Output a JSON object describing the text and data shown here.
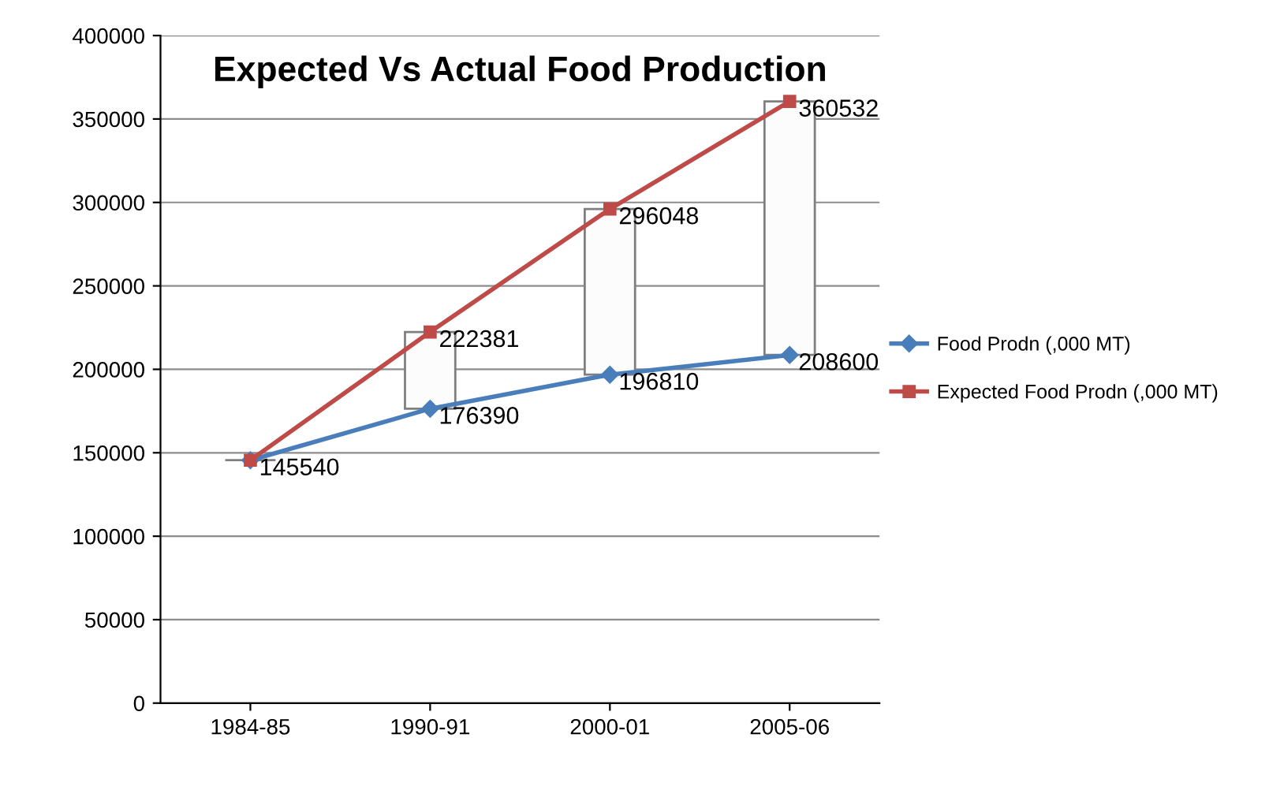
{
  "chart_data": {
    "type": "line",
    "title": "Expected Vs Actual Food Production",
    "categories": [
      "1984-85",
      "1990-91",
      "2000-01",
      "2005-06"
    ],
    "series": [
      {
        "type": "bar",
        "color": "#7f7f7f",
        "base": [
          145540,
          176390,
          196810,
          208600
        ],
        "values": [
          0,
          45991,
          99238,
          151932
        ]
      },
      {
        "name": "Food Prodn (,000 MT)",
        "color": "#4a7ebb",
        "marker": "diamond",
        "values": [
          145540,
          176390,
          196810,
          208600
        ],
        "value_labels": [
          "145540",
          "176390",
          "196810",
          "208600"
        ]
      },
      {
        "name": "Expected Food Prodn (,000 MT)",
        "color": "#be4b48",
        "marker": "square",
        "values": [
          145540,
          222381,
          296048,
          360532
        ],
        "value_labels": [
          null,
          "222381",
          "296048",
          "360532"
        ]
      }
    ],
    "ylim": [
      0,
      400000
    ],
    "yticks": [
      0,
      50000,
      100000,
      150000,
      200000,
      250000,
      300000,
      350000,
      400000
    ],
    "grid": "y",
    "legend": "right"
  }
}
